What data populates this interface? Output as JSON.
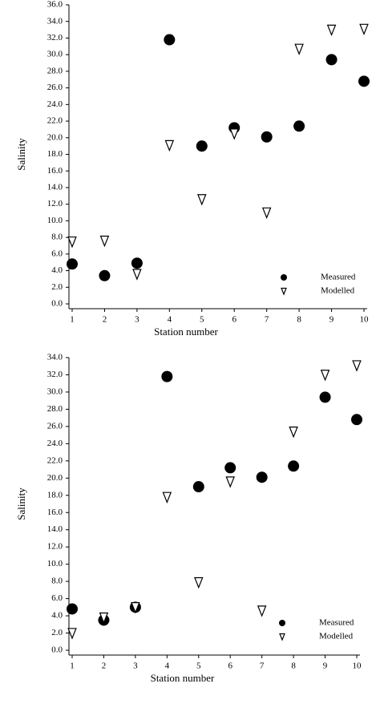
{
  "chart_data": [
    {
      "type": "scatter",
      "x_label": "Station number",
      "y_label": "Salinity",
      "xlim": [
        1,
        10
      ],
      "xticks": [
        1,
        2,
        3,
        4,
        5,
        6,
        7,
        8,
        9,
        10
      ],
      "ylim": [
        0,
        36
      ],
      "yticks": [
        {
          "value": 0,
          "label": "0.0"
        },
        {
          "value": 2,
          "label": "2.0"
        },
        {
          "value": 4,
          "label": "4.0"
        },
        {
          "value": 6,
          "label": "6.0"
        },
        {
          "value": 8,
          "label": "8.0"
        },
        {
          "value": 10,
          "label": "10.0"
        },
        {
          "value": 12,
          "label": "12.0"
        },
        {
          "value": 14,
          "label": "14.0"
        },
        {
          "value": 16,
          "label": "16.0"
        },
        {
          "value": 18,
          "label": "18.0"
        },
        {
          "value": 20,
          "label": "20.0"
        },
        {
          "value": 22,
          "label": "22.0"
        },
        {
          "value": 24,
          "label": "24.0"
        },
        {
          "value": 26,
          "label": "26.0"
        },
        {
          "value": 28,
          "label": "28.0"
        },
        {
          "value": 30,
          "label": "30.0"
        },
        {
          "value": 32,
          "label": "32.0"
        },
        {
          "value": 34,
          "label": "34.0"
        },
        {
          "value": 36,
          "label": "36.0"
        }
      ],
      "legend": "lower right",
      "grid": false,
      "series": [
        {
          "name": "Measured",
          "color": "#000000",
          "marker": "circle",
          "x": [
            1,
            2,
            3,
            4,
            5,
            6,
            7,
            8,
            9,
            10
          ],
          "values": [
            4.8,
            3.4,
            4.9,
            31.8,
            19.0,
            21.2,
            20.1,
            21.4,
            29.4,
            26.8
          ]
        },
        {
          "name": "Modelled",
          "color": "#000000",
          "marker": "triangle-down-open",
          "x": [
            1,
            2,
            3,
            4,
            5,
            6,
            7,
            8,
            9,
            10
          ],
          "values": [
            7.5,
            7.6,
            3.6,
            19.1,
            12.6,
            20.5,
            11.0,
            30.7,
            33.0,
            33.1
          ]
        }
      ]
    },
    {
      "type": "scatter",
      "x_label": "Station number",
      "y_label": "Salinity",
      "xlim": [
        1,
        10
      ],
      "xticks": [
        1,
        2,
        3,
        4,
        5,
        6,
        7,
        8,
        9,
        10
      ],
      "ylim": [
        0,
        34
      ],
      "yticks": [
        {
          "value": 0,
          "label": "0.0"
        },
        {
          "value": 2,
          "label": "2.0"
        },
        {
          "value": 4,
          "label": "4.0"
        },
        {
          "value": 6,
          "label": "6.0"
        },
        {
          "value": 8,
          "label": "8.0"
        },
        {
          "value": 10,
          "label": "10.0"
        },
        {
          "value": 12,
          "label": "12.0"
        },
        {
          "value": 14,
          "label": "14.0"
        },
        {
          "value": 16,
          "label": "16.0"
        },
        {
          "value": 18,
          "label": "18.0"
        },
        {
          "value": 20,
          "label": "20.0"
        },
        {
          "value": 22,
          "label": "22.0"
        },
        {
          "value": 24,
          "label": "24.0"
        },
        {
          "value": 26,
          "label": "26.0"
        },
        {
          "value": 28,
          "label": "28.0"
        },
        {
          "value": 30,
          "label": "30.0"
        },
        {
          "value": 32,
          "label": "32.0"
        },
        {
          "value": 34,
          "label": "34.0"
        }
      ],
      "legend": "lower right",
      "grid": false,
      "series": [
        {
          "name": "Measured",
          "color": "#000000",
          "marker": "circle",
          "x": [
            1,
            2,
            3,
            4,
            5,
            6,
            7,
            8,
            9,
            10
          ],
          "values": [
            4.8,
            3.5,
            5.0,
            31.8,
            19.0,
            21.2,
            20.1,
            21.4,
            29.4,
            26.8
          ]
        },
        {
          "name": "Modelled",
          "color": "#000000",
          "marker": "triangle-down-open",
          "x": [
            1,
            2,
            3,
            4,
            5,
            6,
            7,
            8,
            9,
            10
          ],
          "values": [
            2.0,
            3.8,
            5.0,
            17.8,
            7.9,
            19.6,
            4.6,
            25.4,
            32.0,
            33.1
          ]
        }
      ]
    }
  ]
}
